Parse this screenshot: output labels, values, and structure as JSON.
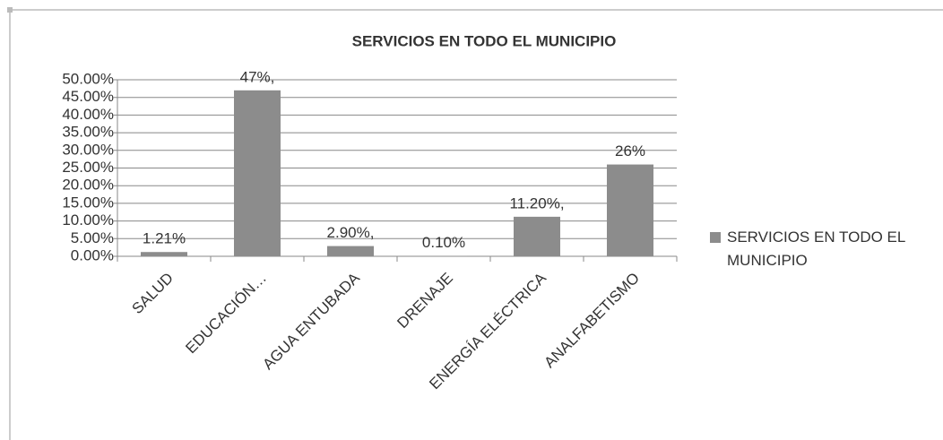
{
  "chart_data": {
    "type": "bar",
    "title": "SERVICIOS EN TODO EL MUNICIPIO",
    "categories": [
      "SALUD",
      "EDUCACIÓN…",
      "AGUA ENTUBADA",
      "DRENAJE",
      "ENERGÍA ELÉCTRICA",
      "ANALFABETISMO"
    ],
    "series": [
      {
        "name": "SERVICIOS EN TODO EL MUNICIPIO",
        "color": "#8c8c8c",
        "values": [
          1.21,
          47,
          2.9,
          0.1,
          11.2,
          26
        ],
        "value_labels": [
          "1.21%",
          "47%,",
          "2.90%,",
          "0.10%",
          "11.20%,",
          "26%"
        ]
      }
    ],
    "ylim": [
      0,
      50
    ],
    "yticks": [
      {
        "value": 0,
        "label": "0.00%"
      },
      {
        "value": 5,
        "label": "5.00%"
      },
      {
        "value": 10,
        "label": "10.00%"
      },
      {
        "value": 15,
        "label": "15.00%"
      },
      {
        "value": 20,
        "label": "20.00%"
      },
      {
        "value": 25,
        "label": "25.00%"
      },
      {
        "value": 30,
        "label": "30.00%"
      },
      {
        "value": 35,
        "label": "35.00%"
      },
      {
        "value": 40,
        "label": "40.00%"
      },
      {
        "value": 45,
        "label": "45.00%"
      },
      {
        "value": 50,
        "label": "50.00%"
      }
    ],
    "grid": true,
    "legend": "right"
  }
}
